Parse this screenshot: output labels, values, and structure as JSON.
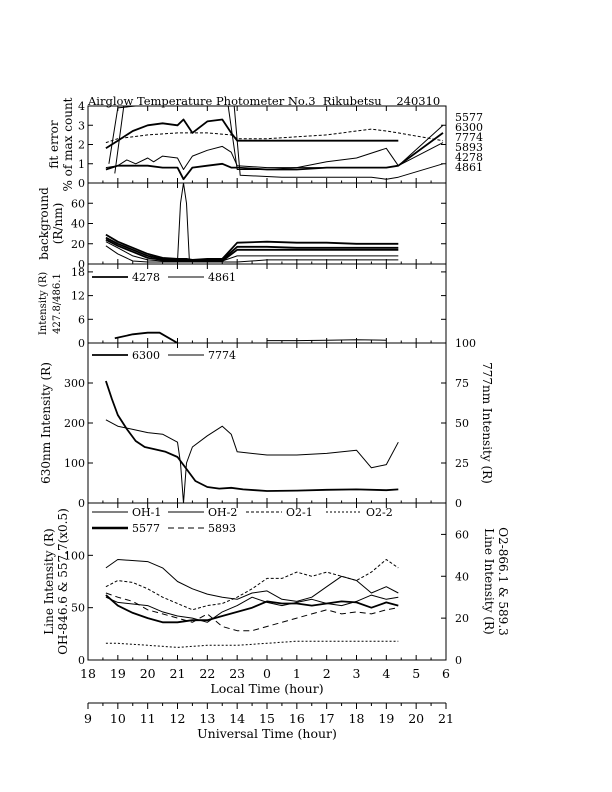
{
  "figure_title": "Airglow Temperature Photometer No.3  Rikubetsu    240310",
  "x_axes": {
    "local": {
      "label": "Local Time (hour)",
      "range": [
        18,
        30
      ],
      "ticks": [
        "18",
        "19",
        "20",
        "21",
        "22",
        "23",
        "0",
        "1",
        "2",
        "3",
        "4",
        "5",
        "6"
      ]
    },
    "universal": {
      "label": "Universal Time (hour)",
      "range": [
        9,
        21
      ],
      "ticks": [
        "9",
        "10",
        "11",
        "12",
        "13",
        "14",
        "15",
        "16",
        "17",
        "18",
        "19",
        "20",
        "21"
      ]
    }
  },
  "chart_data": [
    {
      "type": "line",
      "panel": "fit-error",
      "ylabel_lines": [
        "fit error",
        "% of max count"
      ],
      "ylim": [
        0,
        4
      ],
      "yticks": [
        "0",
        "1",
        "2",
        "3",
        "4"
      ],
      "x_unit": "local hour (continuous, 24=0h)",
      "right_labels": [
        "5577",
        "6300",
        "7774",
        "5893",
        "4278",
        "4861"
      ],
      "series": [
        {
          "name": "5577",
          "width": 1.8,
          "x": [
            18.6,
            19.0,
            19.5,
            20.0,
            20.5,
            21.0,
            21.2,
            21.5,
            22.0,
            22.5,
            22.8,
            23.0,
            24.0,
            25.0,
            26.0,
            27.0,
            28.0,
            28.4
          ],
          "y": [
            1.8,
            2.2,
            2.7,
            3.0,
            3.1,
            3.0,
            3.3,
            2.6,
            3.2,
            3.3,
            2.6,
            2.2,
            2.2,
            2.2,
            2.2,
            2.2,
            2.2,
            2.2
          ]
        },
        {
          "name": "6300",
          "width": 1.0,
          "dash": "3,2",
          "x": [
            18.6,
            19.0,
            20.0,
            21.0,
            22.0,
            22.8,
            23.0,
            24.0,
            25.0,
            26.0,
            27.0,
            27.5,
            28.0,
            28.4,
            29.9
          ],
          "y": [
            2.1,
            2.3,
            2.5,
            2.6,
            2.6,
            2.5,
            2.3,
            2.3,
            2.4,
            2.5,
            2.7,
            2.8,
            2.7,
            2.6,
            2.2
          ]
        },
        {
          "name": "7774",
          "width": 1.0,
          "x": [
            18.6,
            19.0,
            19.3,
            19.6,
            20.0,
            20.2,
            20.5,
            21.0,
            21.2,
            21.5,
            22.0,
            22.5,
            22.8,
            23.0,
            24.0,
            25.0,
            26.0,
            27.0,
            28.0,
            28.4,
            29.9
          ],
          "y": [
            0.8,
            0.9,
            1.2,
            1.0,
            1.3,
            1.1,
            1.4,
            1.3,
            0.7,
            1.4,
            1.7,
            1.9,
            1.6,
            0.9,
            0.8,
            0.8,
            0.8,
            0.8,
            0.8,
            0.9,
            3.0
          ]
        },
        {
          "name": "5893",
          "width": 1.8,
          "x": [
            18.6,
            19.0,
            20.0,
            20.5,
            21.0,
            21.2,
            21.5,
            22.0,
            22.5,
            22.8,
            23.0,
            24.0,
            25.0,
            26.0,
            27.0,
            28.0,
            28.4,
            29.9
          ],
          "y": [
            0.7,
            0.9,
            0.9,
            0.8,
            0.8,
            0.2,
            0.8,
            0.9,
            1.0,
            0.8,
            0.8,
            0.7,
            0.7,
            0.8,
            0.8,
            0.8,
            0.9,
            2.6
          ]
        },
        {
          "name": "4278",
          "width": 1.0,
          "x": [
            18.7,
            19.0,
            19.6,
            20.5,
            21.0,
            21.6,
            22.2,
            22.7,
            23.0,
            24.0,
            25.0,
            26.0,
            27.0,
            28.0,
            28.4,
            29.9
          ],
          "y": [
            1.0,
            3.9,
            4.0,
            4.0,
            4.0,
            4.0,
            4.0,
            4.0,
            0.7,
            0.7,
            0.8,
            1.1,
            1.3,
            1.8,
            0.9,
            2.1
          ]
        },
        {
          "name": "4861",
          "width": 1.0,
          "x": [
            18.9,
            19.2,
            19.4,
            22.4,
            22.9,
            23.1,
            24.5,
            25.0,
            26.0,
            27.0,
            27.5,
            28.0,
            28.4,
            29.9
          ],
          "y": [
            0.5,
            4.0,
            4.0,
            4.0,
            4.0,
            0.4,
            0.3,
            0.3,
            0.3,
            0.3,
            0.3,
            0.2,
            0.3,
            1.0
          ]
        }
      ]
    },
    {
      "type": "line",
      "panel": "background",
      "ylabel_lines": [
        "background",
        "(R/nm)"
      ],
      "ylim": [
        0,
        80
      ],
      "yticks": [
        "0",
        "20",
        "40",
        "60"
      ],
      "series": [
        {
          "name": "bg-1",
          "width": 1.8,
          "x": [
            18.6,
            19.0,
            19.5,
            20.0,
            20.5,
            21.0,
            21.2,
            21.3,
            21.5,
            22.0,
            22.5,
            23.0,
            24.0,
            25.0,
            26.0,
            27.0,
            28.0,
            28.4
          ],
          "y": [
            29,
            22,
            16,
            10,
            6,
            5,
            5,
            5,
            4,
            5,
            5,
            21,
            22,
            21,
            21,
            20,
            20,
            20
          ]
        },
        {
          "name": "bg-2",
          "width": 1.8,
          "x": [
            18.6,
            19.0,
            19.5,
            20.0,
            20.5,
            21.0,
            21.2,
            21.3,
            21.5,
            22.0,
            22.5,
            23.0,
            24.0,
            25.0,
            26.0,
            27.0,
            28.0,
            28.4
          ],
          "y": [
            26,
            20,
            14,
            8,
            5,
            4,
            4,
            4,
            3,
            4,
            4,
            17,
            17,
            16,
            16,
            16,
            16,
            16
          ]
        },
        {
          "name": "bg-3",
          "width": 1.8,
          "x": [
            18.6,
            19.0,
            19.5,
            20.0,
            20.5,
            21.0,
            21.2,
            21.3,
            21.5,
            22.0,
            22.5,
            23.0,
            24.0,
            25.0,
            26.0,
            27.0,
            28.0,
            28.4
          ],
          "y": [
            24,
            18,
            12,
            6,
            4,
            3,
            3,
            3,
            3,
            3,
            3,
            14,
            14,
            14,
            14,
            14,
            14,
            14
          ]
        },
        {
          "name": "bg-4",
          "width": 1.0,
          "x": [
            18.6,
            19.0,
            19.5,
            20.0,
            20.5,
            21.0,
            21.1,
            21.2,
            21.3,
            21.4,
            21.5,
            22.0,
            22.5,
            23.0,
            24.0,
            25.0,
            26.0,
            27.0,
            28.0,
            28.4
          ],
          "y": [
            22,
            16,
            8,
            4,
            3,
            3,
            60,
            80,
            60,
            3,
            3,
            3,
            3,
            8,
            8,
            8,
            8,
            8,
            8,
            8
          ]
        },
        {
          "name": "bg-5",
          "width": 1.0,
          "x": [
            18.6,
            19.0,
            19.5,
            20.0,
            21.0,
            22.0,
            23.0,
            24.0,
            25.0,
            26.0,
            27.0,
            28.0,
            28.4
          ],
          "y": [
            18,
            10,
            3,
            2,
            2,
            2,
            2,
            4,
            4,
            4,
            4,
            4,
            4
          ]
        }
      ]
    },
    {
      "type": "line",
      "panel": "4278-4861",
      "ylabel_lines": [
        "Intensity (R)",
        "427.8/486.1"
      ],
      "ylim": [
        0,
        20
      ],
      "yticks": [
        "0",
        "6",
        "12",
        "18"
      ],
      "legend": [
        "4278",
        "4861"
      ],
      "series": [
        {
          "name": "4278",
          "width": 1.8,
          "x": [
            18.9,
            19.5,
            20.0,
            20.4,
            21.0
          ],
          "y": [
            1.2,
            2.2,
            2.6,
            2.6,
            0
          ]
        },
        {
          "name": "4861",
          "width": 1.0,
          "x": [
            24.0,
            25.0,
            26.0,
            27.0,
            28.0
          ],
          "y": [
            0.6,
            0.6,
            0.7,
            0.8,
            0.7
          ]
        }
      ]
    },
    {
      "type": "line",
      "panel": "630-777",
      "ylabel": "630nm Intensity (R)",
      "ylabel_right": "777nm Intensity (R)",
      "ylim": [
        0,
        400
      ],
      "yticks": [
        "0",
        "100",
        "200",
        "300"
      ],
      "ylim_right": [
        0,
        100
      ],
      "yticks_right": [
        "0",
        "25",
        "50",
        "75",
        "100"
      ],
      "legend": [
        "6300",
        "7774"
      ],
      "series": [
        {
          "name": "6300",
          "width": 1.8,
          "x": [
            18.6,
            18.8,
            19.0,
            19.3,
            19.6,
            19.9,
            20.2,
            20.6,
            21.0,
            21.3,
            21.6,
            22.0,
            22.4,
            22.8,
            23.2,
            23.6,
            24.0,
            25.0,
            26.0,
            27.0,
            28.0,
            28.4
          ],
          "y": [
            305,
            260,
            220,
            185,
            155,
            140,
            135,
            128,
            115,
            85,
            55,
            40,
            36,
            38,
            34,
            32,
            30,
            31,
            33,
            34,
            32,
            34
          ]
        },
        {
          "name": "7774",
          "width": 1.0,
          "x": [
            18.6,
            19.0,
            19.5,
            20.0,
            20.5,
            21.0,
            21.1,
            21.2,
            21.3,
            21.5,
            22.0,
            22.5,
            22.8,
            23.0,
            24.0,
            25.0,
            26.0,
            27.0,
            27.5,
            28.0,
            28.4
          ],
          "y": [
            52,
            48,
            46,
            44,
            43,
            38,
            25,
            0,
            25,
            35,
            42,
            48,
            43,
            32,
            30,
            30,
            31,
            33,
            22,
            24,
            38
          ]
        }
      ]
    },
    {
      "type": "line",
      "panel": "line-intensity",
      "ylabel_lines": [
        "Line Intensity (R)",
        "OH-846.6 & 557.7(x0.5)"
      ],
      "ylabel_right_lines": [
        "Line Intensity (R)",
        "O2-866.1 & 589.3"
      ],
      "ylim": [
        0,
        150
      ],
      "yticks": [
        "0",
        "50",
        "100"
      ],
      "ylim_right": [
        0,
        75
      ],
      "yticks_right": [
        "0",
        "20",
        "40",
        "60"
      ],
      "legend": [
        "OH-1",
        "OH-2",
        "O2-1",
        "O2-2",
        "5577",
        "5893"
      ],
      "series": [
        {
          "name": "OH-1",
          "width": 1.0,
          "x": [
            18.6,
            19.0,
            20.0,
            20.5,
            21.0,
            21.5,
            22.0,
            22.5,
            23.0,
            23.5,
            24.0,
            24.5,
            25.0,
            25.5,
            26.0,
            26.5,
            27.0,
            27.5,
            28.0,
            28.4
          ],
          "y": [
            88,
            96,
            94,
            88,
            75,
            68,
            63,
            60,
            58,
            64,
            66,
            58,
            56,
            60,
            70,
            80,
            76,
            64,
            70,
            64
          ]
        },
        {
          "name": "OH-2",
          "width": 1.0,
          "x": [
            18.6,
            19.0,
            20.0,
            20.5,
            21.0,
            21.5,
            22.0,
            22.5,
            23.0,
            23.5,
            24.0,
            24.5,
            25.0,
            25.5,
            26.0,
            26.5,
            27.0,
            27.5,
            28.0,
            28.4
          ],
          "y": [
            60,
            55,
            52,
            46,
            42,
            40,
            36,
            46,
            52,
            60,
            55,
            52,
            55,
            58,
            54,
            52,
            56,
            62,
            58,
            60
          ]
        },
        {
          "name": "O2-1",
          "width": 1.0,
          "dash": "3,2",
          "x": [
            18.6,
            19.0,
            19.5,
            20.0,
            20.5,
            21.0,
            21.5,
            22.0,
            22.5,
            23.0,
            23.5,
            24.0,
            24.5,
            25.0,
            25.5,
            26.0,
            26.5,
            27.0,
            27.5,
            28.0,
            28.4
          ],
          "y": [
            35,
            38,
            37,
            34,
            30,
            27,
            24,
            26,
            27,
            30,
            34,
            39,
            39,
            42,
            40,
            42,
            40,
            38,
            42,
            48,
            44
          ]
        },
        {
          "name": "O2-2",
          "width": 1.0,
          "dash": "2,2",
          "x": [
            18.6,
            19.0,
            20.0,
            21.0,
            22.0,
            23.0,
            24.0,
            25.0,
            26.0,
            27.0,
            28.0,
            28.4
          ],
          "y": [
            8,
            8,
            7,
            6,
            7,
            7,
            8,
            9,
            9,
            9,
            9,
            9
          ]
        },
        {
          "name": "5577",
          "width": 1.8,
          "x": [
            18.6,
            19.0,
            19.5,
            20.0,
            20.5,
            21.0,
            21.5,
            22.0,
            22.5,
            23.0,
            23.5,
            24.0,
            24.5,
            25.0,
            25.5,
            26.0,
            26.5,
            27.0,
            27.5,
            28.0,
            28.4
          ],
          "y": [
            62,
            52,
            45,
            40,
            36,
            36,
            38,
            38,
            42,
            46,
            50,
            56,
            54,
            54,
            52,
            54,
            56,
            55,
            50,
            55,
            52
          ]
        },
        {
          "name": "5893",
          "width": 1.0,
          "dash": "6,4",
          "x": [
            18.6,
            19.0,
            19.5,
            20.0,
            20.5,
            21.0,
            21.5,
            22.0,
            22.5,
            23.0,
            23.5,
            24.0,
            24.5,
            25.0,
            25.5,
            26.0,
            26.5,
            27.0,
            27.5,
            28.0,
            28.4
          ],
          "y": [
            32,
            30,
            28,
            24,
            22,
            20,
            18,
            22,
            16,
            14,
            14,
            16,
            18,
            20,
            22,
            24,
            22,
            23,
            22,
            24,
            25
          ]
        }
      ]
    }
  ]
}
